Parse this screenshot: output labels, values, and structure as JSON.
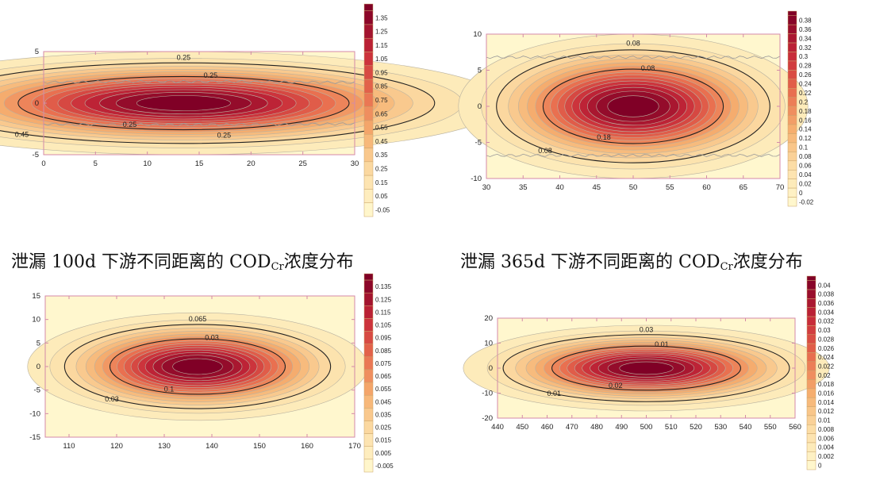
{
  "captions": [
    {
      "prefix": "泄漏 100d 下游不同距离的 COD",
      "sub": "Cr",
      "suffix": "浓度分布"
    },
    {
      "prefix": "泄漏 365d 下游不同距离的 COD",
      "sub": "Cr",
      "suffix": "浓度分布"
    }
  ],
  "chart_data": [
    {
      "type": "heatmap",
      "xlim": [
        0,
        30
      ],
      "ylim": [
        -5,
        5
      ],
      "xticks": [
        "0",
        "5",
        "10",
        "15",
        "20",
        "25",
        "30"
      ],
      "yticks": [
        "5",
        "0",
        "-5"
      ],
      "center": [
        13.5,
        0
      ],
      "peak": 1.4,
      "baseline": 0,
      "colorbar": [
        "1.35",
        "1.25",
        "1.15",
        "1.05",
        "0.95",
        "0.85",
        "0.75",
        "0.65",
        "0.55",
        "0.45",
        "0.35",
        "0.25",
        "0.15",
        "0.05",
        "-0.05"
      ],
      "contour_labels": [
        "0.25",
        "0.25",
        "0.25",
        "0.45",
        "0.25"
      ]
    },
    {
      "type": "heatmap",
      "xlim": [
        30,
        70
      ],
      "ylim": [
        -10,
        10
      ],
      "xticks": [
        "30",
        "35",
        "40",
        "45",
        "50",
        "55",
        "60",
        "65",
        "70"
      ],
      "yticks": [
        "10",
        "5",
        "0",
        "-5",
        "-10"
      ],
      "center": [
        50,
        0
      ],
      "peak": 0.39,
      "baseline": 0,
      "colorbar": [
        "0.38",
        "0.36",
        "0.34",
        "0.32",
        "0.3",
        "0.28",
        "0.26",
        "0.24",
        "0.22",
        "0.2",
        "0.18",
        "0.16",
        "0.14",
        "0.12",
        "0.1",
        "0.08",
        "0.06",
        "0.04",
        "0.02",
        "0",
        "-0.02"
      ],
      "contour_labels": [
        "0.08",
        "0.08",
        "0.18",
        "0.08"
      ]
    },
    {
      "type": "heatmap",
      "xlim": [
        105,
        170
      ],
      "ylim": [
        -15,
        15
      ],
      "xticks": [
        "110",
        "120",
        "130",
        "140",
        "150",
        "160",
        "170"
      ],
      "yticks": [
        "15",
        "10",
        "5",
        "0",
        "-5",
        "-10",
        "-15"
      ],
      "center": [
        137,
        0
      ],
      "peak": 0.14,
      "baseline": 0,
      "colorbar": [
        "0.135",
        "0.125",
        "0.115",
        "0.105",
        "0.095",
        "0.085",
        "0.075",
        "0.065",
        "0.055",
        "0.045",
        "0.035",
        "0.025",
        "0.015",
        "0.005",
        "-0.005"
      ],
      "contour_labels": [
        "0.03",
        "0.065",
        "0.1",
        "0.03"
      ]
    },
    {
      "type": "heatmap",
      "xlim": [
        440,
        560
      ],
      "ylim": [
        -20,
        20
      ],
      "xticks": [
        "440",
        "450",
        "460",
        "470",
        "480",
        "490",
        "500",
        "510",
        "520",
        "530",
        "540",
        "550",
        "560"
      ],
      "yticks": [
        "20",
        "10",
        "0",
        "-10",
        "-20"
      ],
      "center": [
        500,
        0
      ],
      "peak": 0.041,
      "baseline": 0,
      "colorbar": [
        "0.04",
        "0.038",
        "0.036",
        "0.034",
        "0.032",
        "0.03",
        "0.028",
        "0.026",
        "0.024",
        "0.022",
        "0.02",
        "0.018",
        "0.016",
        "0.014",
        "0.012",
        "0.01",
        "0.008",
        "0.006",
        "0.004",
        "0.002",
        "0"
      ],
      "contour_labels": [
        "0.01",
        "0.03",
        "0.02",
        "0.01"
      ]
    }
  ]
}
